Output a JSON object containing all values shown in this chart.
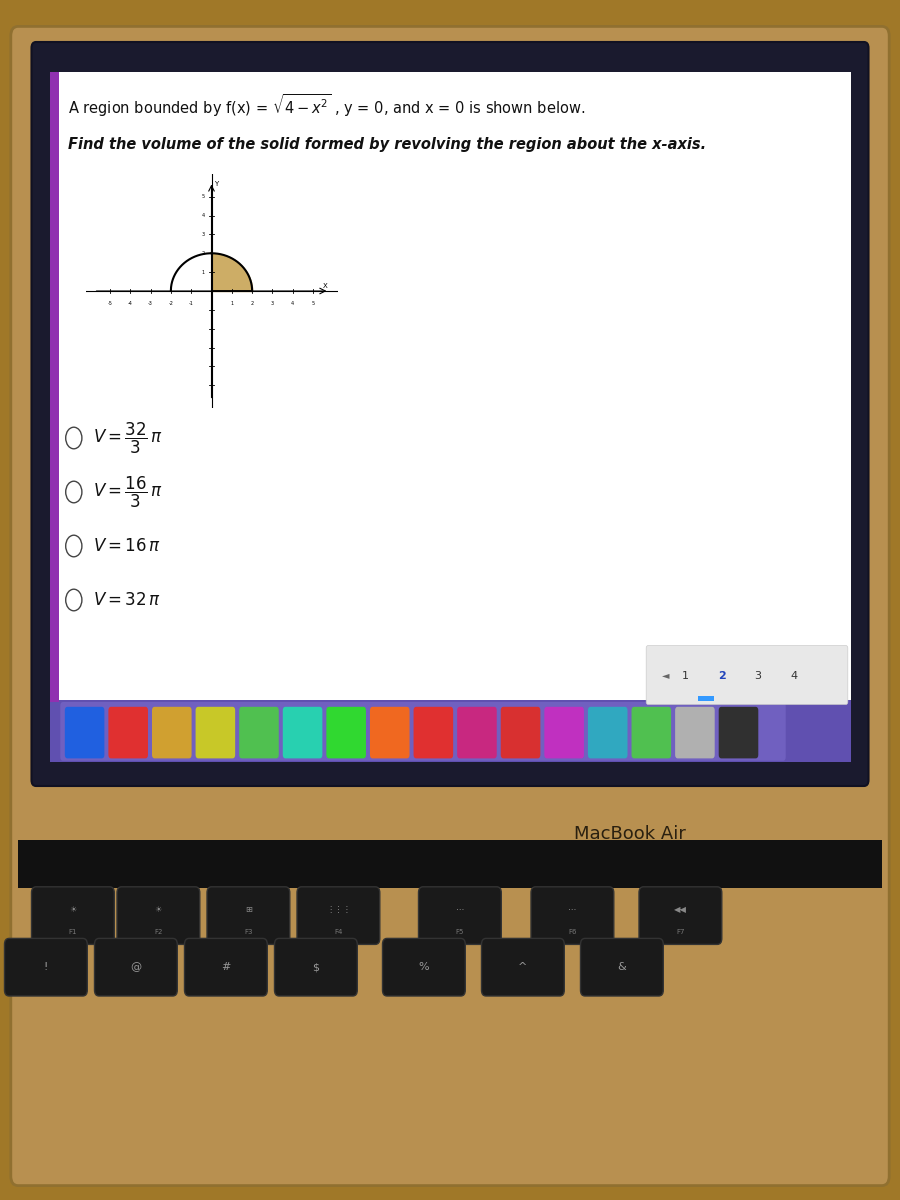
{
  "title_line1_plain": "A region bounded by f(x) = ",
  "title_line1_math": "\\sqrt{4-x^2}",
  "title_line1_end": " , y = 0, and x = 0 is shown below.",
  "title_line2": "Find the volume of the solid formed by revolving the region about the x-axis.",
  "choice_latex": [
    "$V = \\dfrac{32}{3}\\,\\pi$",
    "$V = \\dfrac{16}{3}\\,\\pi$",
    "$V = 16\\,\\pi$",
    "$V = 32\\,\\pi$"
  ],
  "screen_bg": "#e8e8e8",
  "content_bg": "#ffffff",
  "text_color": "#111111",
  "shading_color": "#c8a455",
  "macbook_body_top": "#c8a060",
  "macbook_body_dark": "#a07830",
  "bezel_color": "#1a1a2e",
  "dock_bg": "#6050b0",
  "dock_icons_bg": "#7060c0",
  "keyboard_bg": "#1a1a1a",
  "laptop_frame": "#b89050",
  "bottom_bg": "#a07828",
  "nav_bg": "#e8e8e8",
  "nav_border": "#cccccc",
  "purple_stripe": "#9030b0"
}
